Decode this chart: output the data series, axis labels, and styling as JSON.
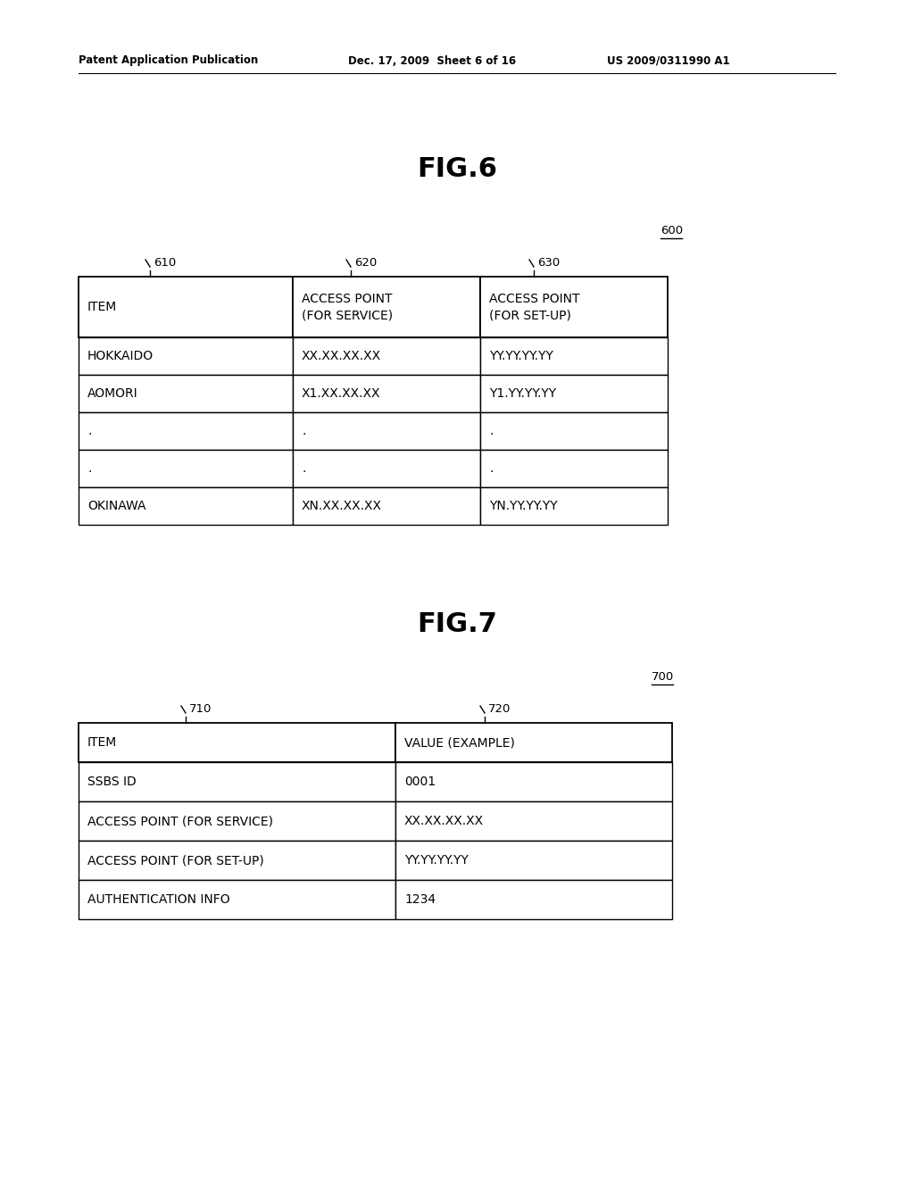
{
  "bg_color": "#ffffff",
  "header_left": "Patent Application Publication",
  "header_mid": "Dec. 17, 2009  Sheet 6 of 16",
  "header_right": "US 2009/0311990 A1",
  "fig6_title": "FIG.6",
  "fig6_label": "600",
  "fig6_col_labels": [
    "610",
    "620",
    "630"
  ],
  "fig6_headers": [
    "ITEM",
    "ACCESS POINT\n(FOR SERVICE)",
    "ACCESS POINT\n(FOR SET-UP)"
  ],
  "fig6_rows": [
    [
      "HOKKAIDO",
      "XX.XX.XX.XX",
      "YY.YY.YY.YY"
    ],
    [
      "AOMORI",
      "X1.XX.XX.XX",
      "Y1.YY.YY.YY"
    ],
    [
      ".",
      ".",
      "."
    ],
    [
      ".",
      ".",
      "."
    ],
    [
      "OKINAWA",
      "XN.XX.XX.XX",
      "YN.YY.YY.YY"
    ]
  ],
  "fig7_title": "FIG.7",
  "fig7_label": "700",
  "fig7_col_labels": [
    "710",
    "720"
  ],
  "fig7_headers": [
    "ITEM",
    "VALUE (EXAMPLE)"
  ],
  "fig7_rows": [
    [
      "SSBS ID",
      "0001"
    ],
    [
      "ACCESS POINT (FOR SERVICE)",
      "XX.XX.XX.XX"
    ],
    [
      "ACCESS POINT (FOR SET-UP)",
      "YY.YY.YY.YY"
    ],
    [
      "AUTHENTICATION INFO",
      "1234"
    ]
  ]
}
